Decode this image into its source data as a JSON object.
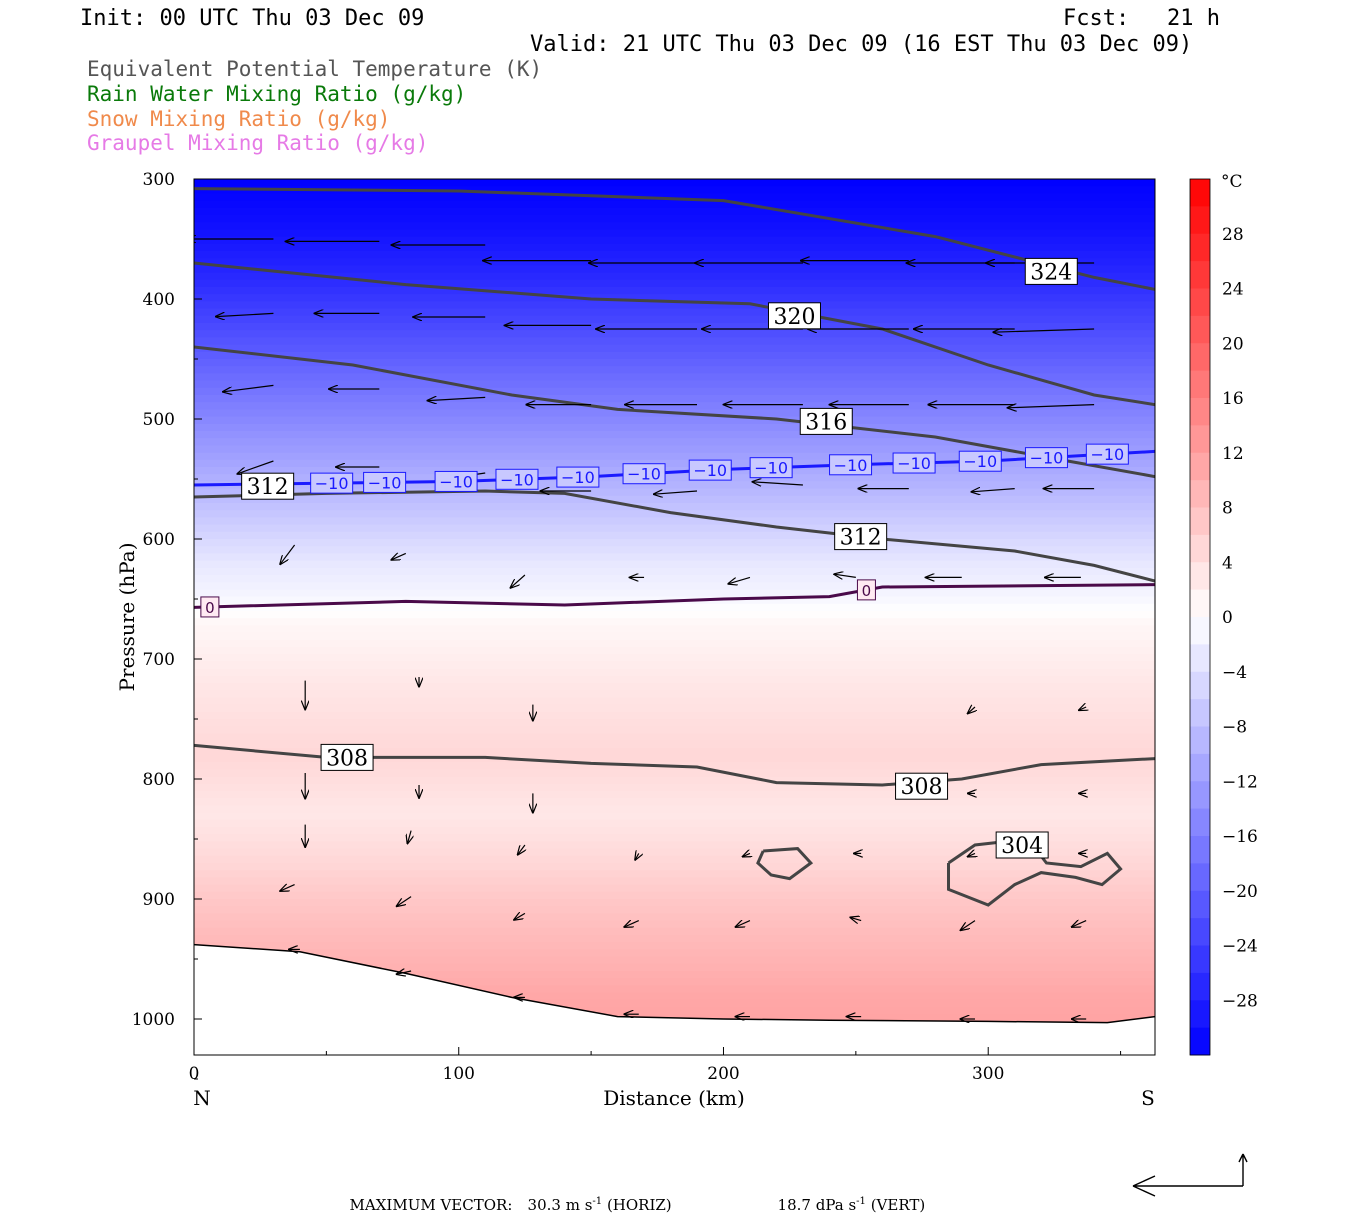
{
  "header": {
    "init": "Init: 00 UTC Thu 03 Dec 09",
    "fcst_label": "Fcst:",
    "fcst_value": "21 h",
    "valid": "Valid: 21 UTC Thu 03 Dec 09 (16 EST Thu 03 Dec 09)"
  },
  "legend": [
    {
      "label": "Equivalent Potential Temperature (K)",
      "color": "#555555"
    },
    {
      "label": "Rain Water Mixing Ratio (g/kg)",
      "color": "#0a7a0a"
    },
    {
      "label": "Snow Mixing Ratio (g/kg)",
      "color": "#f08a4b"
    },
    {
      "label": "Graupel Mixing Ratio (g/kg)",
      "color": "#e67ae6"
    }
  ],
  "chart_data": {
    "type": "heatmap",
    "xlabel": "Distance (km)",
    "ylabel": "Pressure (hPa)",
    "x_ticks": [
      "0",
      "100",
      "200",
      "300"
    ],
    "y_ticks": [
      "300",
      "400",
      "500",
      "600",
      "700",
      "800",
      "900",
      "1000"
    ],
    "xlim": [
      0,
      363
    ],
    "ylim": [
      1030,
      300
    ],
    "x_end_labels": {
      "left": "N",
      "right": "S"
    },
    "colorbar": {
      "unit": "°C",
      "labels": [
        "28",
        "24",
        "20",
        "16",
        "12",
        "8",
        "4",
        "0",
        "−4",
        "−8",
        "−12",
        "−16",
        "−20",
        "−24",
        "−28"
      ],
      "min": -32,
      "max": 32,
      "step": 2,
      "cold_color": "#0000ff",
      "warm_color": "#ff0000"
    },
    "theta_e_contours": [
      {
        "value": "324",
        "points": [
          [
            0,
            308
          ],
          [
            100,
            310
          ],
          [
            200,
            318
          ],
          [
            280,
            348
          ],
          [
            340,
            382
          ],
          [
            363,
            392
          ]
        ]
      },
      {
        "value": "320",
        "points": [
          [
            0,
            370
          ],
          [
            80,
            388
          ],
          [
            150,
            400
          ],
          [
            210,
            404
          ],
          [
            260,
            425
          ],
          [
            300,
            455
          ],
          [
            340,
            480
          ],
          [
            363,
            488
          ]
        ]
      },
      {
        "value": "316",
        "points": [
          [
            0,
            440
          ],
          [
            60,
            455
          ],
          [
            120,
            480
          ],
          [
            160,
            492
          ],
          [
            220,
            500
          ],
          [
            280,
            515
          ],
          [
            330,
            535
          ],
          [
            363,
            548
          ]
        ]
      },
      {
        "value": "312",
        "points": [
          [
            0,
            565
          ],
          [
            50,
            562
          ],
          [
            110,
            560
          ],
          [
            140,
            562
          ],
          [
            180,
            578
          ],
          [
            220,
            590
          ],
          [
            260,
            600
          ],
          [
            310,
            610
          ],
          [
            340,
            622
          ],
          [
            363,
            635
          ]
        ]
      },
      {
        "value": "308",
        "points": [
          [
            0,
            772
          ],
          [
            50,
            782
          ],
          [
            110,
            782
          ],
          [
            150,
            787
          ],
          [
            190,
            790
          ],
          [
            220,
            803
          ],
          [
            260,
            805
          ],
          [
            290,
            800
          ],
          [
            320,
            788
          ],
          [
            363,
            783
          ]
        ]
      }
    ],
    "theta_e_labels": [
      {
        "text": "324",
        "x": 314,
        "y": 377
      },
      {
        "text": "320",
        "x": 217,
        "y": 414
      },
      {
        "text": "316",
        "x": 229,
        "y": 502
      },
      {
        "text": "312",
        "x": 18,
        "y": 556
      },
      {
        "text": "312",
        "x": 242,
        "y": 598
      },
      {
        "text": "308",
        "x": 48,
        "y": 782
      },
      {
        "text": "308",
        "x": 265,
        "y": 806
      },
      {
        "text": "304",
        "x": 303,
        "y": 855
      }
    ],
    "isotherm_minus10": {
      "value": "−10",
      "points": [
        [
          0,
          555
        ],
        [
          100,
          552
        ],
        [
          150,
          548
        ],
        [
          200,
          542
        ],
        [
          250,
          538
        ],
        [
          300,
          535
        ],
        [
          363,
          527
        ]
      ],
      "labels_x": [
        52,
        72,
        99,
        122,
        145,
        170,
        195,
        218,
        248,
        272,
        297,
        322,
        345
      ]
    },
    "isotherm_0": {
      "value": "0",
      "points": [
        [
          0,
          657
        ],
        [
          80,
          652
        ],
        [
          140,
          655
        ],
        [
          200,
          650
        ],
        [
          240,
          648
        ],
        [
          260,
          640
        ],
        [
          363,
          638
        ]
      ],
      "labels_x": [
        6,
        254
      ]
    },
    "closed_304_contours": [
      [
        [
          215,
          860
        ],
        [
          228,
          858
        ],
        [
          233,
          870
        ],
        [
          225,
          883
        ],
        [
          218,
          880
        ],
        [
          213,
          870
        ],
        [
          215,
          860
        ]
      ],
      [
        [
          285,
          870
        ],
        [
          295,
          855
        ],
        [
          315,
          850
        ],
        [
          322,
          870
        ],
        [
          335,
          873
        ],
        [
          345,
          862
        ],
        [
          350,
          875
        ],
        [
          343,
          888
        ],
        [
          333,
          882
        ],
        [
          320,
          878
        ],
        [
          310,
          888
        ],
        [
          300,
          905
        ],
        [
          285,
          892
        ],
        [
          285,
          870
        ]
      ]
    ],
    "surface_line": [
      [
        0,
        938
      ],
      [
        40,
        944
      ],
      [
        80,
        962
      ],
      [
        120,
        982
      ],
      [
        160,
        998
      ],
      [
        200,
        1000
      ],
      [
        240,
        1001
      ],
      [
        300,
        1002
      ],
      [
        345,
        1003
      ],
      [
        363,
        998
      ]
    ],
    "wind_vectors": [
      {
        "x": 30,
        "y": 350,
        "u": -24,
        "w": 0
      },
      {
        "x": 70,
        "y": 352,
        "u": -26,
        "w": 0
      },
      {
        "x": 110,
        "y": 355,
        "u": -26,
        "w": 0
      },
      {
        "x": 150,
        "y": 368,
        "u": -30,
        "w": 0
      },
      {
        "x": 190,
        "y": 370,
        "u": -30,
        "w": 0
      },
      {
        "x": 230,
        "y": 370,
        "u": -30,
        "w": 0
      },
      {
        "x": 270,
        "y": 368,
        "u": -30,
        "w": 0
      },
      {
        "x": 310,
        "y": 370,
        "u": -30,
        "w": 0
      },
      {
        "x": 340,
        "y": 370,
        "u": -30,
        "w": 0
      },
      {
        "x": 30,
        "y": 412,
        "u": -16,
        "w": 1
      },
      {
        "x": 70,
        "y": 412,
        "u": -18,
        "w": 0
      },
      {
        "x": 110,
        "y": 415,
        "u": -20,
        "w": 0
      },
      {
        "x": 150,
        "y": 422,
        "u": -24,
        "w": 0
      },
      {
        "x": 190,
        "y": 425,
        "u": -28,
        "w": 0
      },
      {
        "x": 230,
        "y": 425,
        "u": -28,
        "w": 0
      },
      {
        "x": 270,
        "y": 425,
        "u": -28,
        "w": 0
      },
      {
        "x": 310,
        "y": 425,
        "u": -28,
        "w": 0
      },
      {
        "x": 340,
        "y": 425,
        "u": -28,
        "w": 1
      },
      {
        "x": 30,
        "y": 472,
        "u": -14,
        "w": 2
      },
      {
        "x": 70,
        "y": 475,
        "u": -14,
        "w": 0
      },
      {
        "x": 110,
        "y": 482,
        "u": -16,
        "w": 1
      },
      {
        "x": 150,
        "y": 488,
        "u": -18,
        "w": 0
      },
      {
        "x": 190,
        "y": 488,
        "u": -20,
        "w": 0
      },
      {
        "x": 230,
        "y": 488,
        "u": -22,
        "w": 0
      },
      {
        "x": 270,
        "y": 488,
        "u": -22,
        "w": 0
      },
      {
        "x": 310,
        "y": 488,
        "u": -24,
        "w": 0
      },
      {
        "x": 340,
        "y": 488,
        "u": -24,
        "w": 1
      },
      {
        "x": 30,
        "y": 535,
        "u": -10,
        "w": 4
      },
      {
        "x": 70,
        "y": 540,
        "u": -12,
        "w": 0
      },
      {
        "x": 110,
        "y": 545,
        "u": -12,
        "w": 2
      },
      {
        "x": 150,
        "y": 560,
        "u": -14,
        "w": 0
      },
      {
        "x": 190,
        "y": 560,
        "u": -12,
        "w": 1
      },
      {
        "x": 230,
        "y": 555,
        "u": -14,
        "w": -1
      },
      {
        "x": 270,
        "y": 558,
        "u": -14,
        "w": 0
      },
      {
        "x": 310,
        "y": 558,
        "u": -12,
        "w": 1
      },
      {
        "x": 340,
        "y": 558,
        "u": -14,
        "w": 0
      },
      {
        "x": 38,
        "y": 605,
        "u": -4,
        "w": 6
      },
      {
        "x": 80,
        "y": 612,
        "u": -4,
        "w": 2
      },
      {
        "x": 125,
        "y": 630,
        "u": -4,
        "w": 4
      },
      {
        "x": 170,
        "y": 632,
        "u": -4,
        "w": 0
      },
      {
        "x": 210,
        "y": 632,
        "u": -6,
        "w": 2
      },
      {
        "x": 250,
        "y": 632,
        "u": -6,
        "w": -1
      },
      {
        "x": 290,
        "y": 632,
        "u": -10,
        "w": 0
      },
      {
        "x": 335,
        "y": 632,
        "u": -10,
        "w": 0
      },
      {
        "x": 42,
        "y": 718,
        "u": 0,
        "w": 9
      },
      {
        "x": 85,
        "y": 715,
        "u": 0,
        "w": 3
      },
      {
        "x": 128,
        "y": 738,
        "u": 0,
        "w": 5
      },
      {
        "x": 170,
        "y": 740,
        "u": 0,
        "w": 0
      },
      {
        "x": 212,
        "y": 740,
        "u": 0,
        "w": 0
      },
      {
        "x": 252,
        "y": 740,
        "u": 0,
        "w": 0
      },
      {
        "x": 295,
        "y": 740,
        "u": -2,
        "w": 2
      },
      {
        "x": 337,
        "y": 740,
        "u": -2,
        "w": 1
      },
      {
        "x": 42,
        "y": 795,
        "u": 0,
        "w": 8
      },
      {
        "x": 85,
        "y": 805,
        "u": 0,
        "w": 4
      },
      {
        "x": 128,
        "y": 812,
        "u": 0,
        "w": 6
      },
      {
        "x": 170,
        "y": 808,
        "u": 0,
        "w": 0
      },
      {
        "x": 212,
        "y": 812,
        "u": 0,
        "w": 0
      },
      {
        "x": 252,
        "y": 812,
        "u": 0,
        "w": 0
      },
      {
        "x": 295,
        "y": 812,
        "u": -2,
        "w": 0
      },
      {
        "x": 337,
        "y": 812,
        "u": -2,
        "w": 0
      },
      {
        "x": 42,
        "y": 838,
        "u": 0,
        "w": 7
      },
      {
        "x": 82,
        "y": 843,
        "u": -1,
        "w": 4
      },
      {
        "x": 125,
        "y": 855,
        "u": -2,
        "w": 3
      },
      {
        "x": 168,
        "y": 862,
        "u": -1,
        "w": 2
      },
      {
        "x": 210,
        "y": 862,
        "u": -2,
        "w": 1
      },
      {
        "x": 252,
        "y": 862,
        "u": -2,
        "w": 0
      },
      {
        "x": 295,
        "y": 862,
        "u": -2,
        "w": 1
      },
      {
        "x": 337,
        "y": 862,
        "u": -2,
        "w": 0
      },
      {
        "x": 38,
        "y": 888,
        "u": -4,
        "w": 2
      },
      {
        "x": 82,
        "y": 898,
        "u": -4,
        "w": 3
      },
      {
        "x": 125,
        "y": 912,
        "u": -3,
        "w": 2
      },
      {
        "x": 168,
        "y": 918,
        "u": -4,
        "w": 2
      },
      {
        "x": 210,
        "y": 918,
        "u": -4,
        "w": 2
      },
      {
        "x": 252,
        "y": 918,
        "u": -3,
        "w": -1
      },
      {
        "x": 295,
        "y": 918,
        "u": -4,
        "w": 3
      },
      {
        "x": 337,
        "y": 918,
        "u": -4,
        "w": 2
      },
      {
        "x": 40,
        "y": 942,
        "u": -3,
        "w": 0
      },
      {
        "x": 82,
        "y": 960,
        "u": -4,
        "w": 1
      },
      {
        "x": 125,
        "y": 982,
        "u": -3,
        "w": 0
      },
      {
        "x": 168,
        "y": 996,
        "u": -4,
        "w": 0
      },
      {
        "x": 210,
        "y": 998,
        "u": -4,
        "w": 0
      },
      {
        "x": 252,
        "y": 998,
        "u": -4,
        "w": 0
      },
      {
        "x": 295,
        "y": 1000,
        "u": -4,
        "w": 0
      },
      {
        "x": 337,
        "y": 1000,
        "u": -4,
        "w": 0
      }
    ]
  },
  "footer": {
    "label": "MAXIMUM VECTOR:",
    "horiz_value": "30.3 m s",
    "horiz_exp": "-1",
    "horiz_tag": "(HORIZ)",
    "vert_value": "18.7 dPa s",
    "vert_exp": "-1",
    "vert_tag": "(VERT)"
  }
}
